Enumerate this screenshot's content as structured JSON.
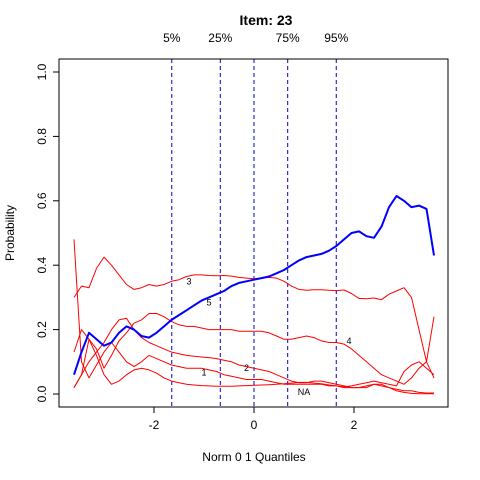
{
  "chart_data": {
    "type": "line",
    "title": "Item:  23",
    "xlabel": "Norm 0 1 Quantiles",
    "ylabel": "Probability",
    "xlim": [
      -3.6,
      3.6
    ],
    "ylim": [
      0,
      1
    ],
    "x_ticks": [
      "-2",
      "0",
      "2"
    ],
    "y_ticks": [
      "0.0",
      "0.2",
      "0.4",
      "0.6",
      "0.8",
      "1.0"
    ],
    "quantile_lines": [
      {
        "label": "5%",
        "x": -1.645
      },
      {
        "label": "25%",
        "x": -0.674
      },
      {
        "label": "",
        "x": 0
      },
      {
        "label": "75%",
        "x": 0.674
      },
      {
        "label": "95%",
        "x": 1.645
      }
    ],
    "series": [
      {
        "name": "",
        "color": "#0000ff",
        "x": [
          -3.6,
          -3.45,
          -3.3,
          -3.15,
          -3.0,
          -2.85,
          -2.7,
          -2.55,
          -2.4,
          -2.25,
          -2.1,
          -1.95,
          -1.8,
          -1.65,
          -1.5,
          -1.35,
          -1.2,
          -1.05,
          -0.9,
          -0.75,
          -0.6,
          -0.45,
          -0.3,
          -0.15,
          0.0,
          0.15,
          0.3,
          0.45,
          0.6,
          0.75,
          0.9,
          1.05,
          1.2,
          1.35,
          1.5,
          1.65,
          1.8,
          1.95,
          2.1,
          2.25,
          2.4,
          2.55,
          2.7,
          2.85,
          3.0,
          3.15,
          3.3,
          3.45,
          3.6
        ],
        "values": [
          0.06,
          0.13,
          0.19,
          0.17,
          0.15,
          0.16,
          0.19,
          0.21,
          0.2,
          0.18,
          0.175,
          0.19,
          0.21,
          0.23,
          0.245,
          0.26,
          0.275,
          0.29,
          0.3,
          0.31,
          0.32,
          0.335,
          0.345,
          0.35,
          0.355,
          0.36,
          0.365,
          0.375,
          0.385,
          0.4,
          0.415,
          0.425,
          0.43,
          0.435,
          0.445,
          0.46,
          0.48,
          0.5,
          0.505,
          0.49,
          0.485,
          0.52,
          0.58,
          0.615,
          0.6,
          0.58,
          0.585,
          0.575,
          0.43
        ]
      },
      {
        "name": "",
        "color": "#ff0000",
        "x": [
          -3.6,
          -3.45,
          -3.3,
          -3.15,
          -3.0,
          -2.85,
          -2.7,
          -2.55,
          -2.4,
          -2.25,
          -2.1,
          -1.95,
          -1.8,
          -1.65,
          -1.5,
          -1.35,
          -1.2,
          -1.05,
          -0.9,
          -0.75,
          -0.6,
          -0.45,
          -0.3,
          -0.15,
          0.0,
          0.15,
          0.3,
          0.45,
          0.6,
          0.75,
          0.9,
          1.05,
          1.2,
          1.35,
          1.5,
          1.65,
          1.8,
          1.95,
          2.1,
          2.25,
          2.4,
          2.55,
          2.7,
          2.85,
          3.0,
          3.15,
          3.3,
          3.45,
          3.6
        ],
        "values": [
          0.48,
          0.1,
          0.05,
          0.09,
          0.13,
          0.16,
          0.13,
          0.1,
          0.085,
          0.1,
          0.12,
          0.11,
          0.1,
          0.09,
          0.085,
          0.08,
          0.08,
          0.08,
          0.075,
          0.07,
          0.06,
          0.055,
          0.05,
          0.045,
          0.045,
          0.045,
          0.04,
          0.035,
          0.03,
          0.03,
          0.03,
          0.03,
          0.03,
          0.03,
          0.025,
          0.025,
          0.02,
          0.02,
          0.02,
          0.02,
          0.03,
          0.03,
          0.02,
          0.015,
          0.01,
          0.01,
          0.005,
          0.003,
          0.003
        ]
      },
      {
        "name": "",
        "color": "#ff0000",
        "x": [
          -3.6,
          -3.45,
          -3.3,
          -3.15,
          -3.0,
          -2.85,
          -2.7,
          -2.55,
          -2.4,
          -2.25,
          -2.1,
          -1.95,
          -1.8,
          -1.65,
          -1.5,
          -1.35,
          -1.2,
          -1.05,
          -0.9,
          -0.75,
          -0.6,
          -0.45,
          -0.3,
          -0.15,
          0.0,
          0.15,
          0.3,
          0.45,
          0.6,
          0.75,
          0.9,
          1.05,
          1.2,
          1.35,
          1.5,
          1.65,
          1.8,
          1.95,
          2.1,
          2.25,
          2.4,
          2.55,
          2.7,
          2.85,
          3.0,
          3.15,
          3.3,
          3.45,
          3.6
        ],
        "values": [
          0.02,
          0.06,
          0.17,
          0.12,
          0.06,
          0.03,
          0.04,
          0.06,
          0.075,
          0.08,
          0.075,
          0.065,
          0.05,
          0.04,
          0.035,
          0.03,
          0.028,
          0.026,
          0.025,
          0.024,
          0.024,
          0.024,
          0.025,
          0.026,
          0.027,
          0.028,
          0.029,
          0.03,
          0.032,
          0.034,
          0.036,
          0.036,
          0.034,
          0.032,
          0.028,
          0.025,
          0.022,
          0.025,
          0.03,
          0.035,
          0.04,
          0.035,
          0.03,
          0.025,
          0.07,
          0.09,
          0.1,
          0.08,
          0.06
        ]
      },
      {
        "name": "",
        "color": "#ff0000",
        "x": [
          -3.6,
          -3.45,
          -3.3,
          -3.15,
          -3.0,
          -2.85,
          -2.7,
          -2.55,
          -2.4,
          -2.25,
          -2.1,
          -1.95,
          -1.8,
          -1.65,
          -1.5,
          -1.35,
          -1.2,
          -1.05,
          -0.9,
          -0.75,
          -0.6,
          -0.45,
          -0.3,
          -0.15,
          0.0,
          0.15,
          0.3,
          0.45,
          0.6,
          0.75,
          0.9,
          1.05,
          1.2,
          1.35,
          1.5,
          1.65,
          1.8,
          1.95,
          2.1,
          2.25,
          2.4,
          2.55,
          2.7,
          2.85,
          3.0,
          3.15,
          3.3,
          3.45,
          3.6
        ],
        "values": [
          0.3,
          0.335,
          0.33,
          0.39,
          0.425,
          0.4,
          0.37,
          0.34,
          0.325,
          0.33,
          0.34,
          0.335,
          0.34,
          0.35,
          0.355,
          0.365,
          0.37,
          0.37,
          0.368,
          0.367,
          0.368,
          0.366,
          0.362,
          0.36,
          0.358,
          0.36,
          0.362,
          0.36,
          0.35,
          0.335,
          0.325,
          0.322,
          0.324,
          0.324,
          0.322,
          0.321,
          0.323,
          0.312,
          0.297,
          0.296,
          0.298,
          0.293,
          0.31,
          0.32,
          0.33,
          0.3,
          0.2,
          0.1,
          0.05
        ]
      },
      {
        "name": "",
        "color": "#ff0000",
        "x": [
          -3.6,
          -3.45,
          -3.3,
          -3.15,
          -3.0,
          -2.85,
          -2.7,
          -2.55,
          -2.4,
          -2.25,
          -2.1,
          -1.95,
          -1.8,
          -1.65,
          -1.5,
          -1.35,
          -1.2,
          -1.05,
          -0.9,
          -0.75,
          -0.6,
          -0.45,
          -0.3,
          -0.15,
          0.0,
          0.15,
          0.3,
          0.45,
          0.6,
          0.75,
          0.9,
          1.05,
          1.2,
          1.35,
          1.5,
          1.65,
          1.8,
          1.95,
          2.1,
          2.25,
          2.4,
          2.55,
          2.7,
          2.85,
          3.0,
          3.15,
          3.3,
          3.45,
          3.6
        ],
        "values": [
          0.13,
          0.2,
          0.17,
          0.14,
          0.08,
          0.12,
          0.165,
          0.19,
          0.22,
          0.23,
          0.25,
          0.25,
          0.24,
          0.225,
          0.215,
          0.21,
          0.21,
          0.205,
          0.2,
          0.2,
          0.2,
          0.2,
          0.195,
          0.195,
          0.195,
          0.195,
          0.19,
          0.18,
          0.17,
          0.17,
          0.175,
          0.18,
          0.175,
          0.165,
          0.16,
          0.16,
          0.155,
          0.14,
          0.12,
          0.1,
          0.08,
          0.06,
          0.05,
          0.04,
          0.03,
          0.05,
          0.08,
          0.1,
          0.24
        ]
      },
      {
        "name": "",
        "color": "#ff0000",
        "x": [
          -3.6,
          -3.45,
          -3.3,
          -3.15,
          -3.0,
          -2.85,
          -2.7,
          -2.55,
          -2.4,
          -2.25,
          -2.1,
          -1.95,
          -1.8,
          -1.65,
          -1.5,
          -1.35,
          -1.2,
          -1.05,
          -0.9,
          -0.75,
          -0.6,
          -0.45,
          -0.3,
          -0.15,
          0.0,
          0.15,
          0.3,
          0.45,
          0.6,
          0.75,
          0.9,
          1.05,
          1.2,
          1.35,
          1.5,
          1.65,
          1.8,
          1.95,
          2.1,
          2.25,
          2.4,
          2.55,
          2.7,
          2.85,
          3.0,
          3.15,
          3.3,
          3.45,
          3.6
        ],
        "values": [
          0.02,
          0.06,
          0.1,
          0.13,
          0.16,
          0.2,
          0.23,
          0.235,
          0.2,
          0.175,
          0.16,
          0.15,
          0.14,
          0.13,
          0.125,
          0.12,
          0.117,
          0.115,
          0.113,
          0.11,
          0.105,
          0.1,
          0.09,
          0.085,
          0.08,
          0.075,
          0.07,
          0.06,
          0.05,
          0.04,
          0.035,
          0.035,
          0.04,
          0.04,
          0.035,
          0.03,
          0.025,
          0.02,
          0.02,
          0.025,
          0.03,
          0.025,
          0.02,
          0.01,
          0.005,
          0.002,
          0.001,
          0.001,
          0.001
        ]
      }
    ],
    "annotations": [
      {
        "text": "3",
        "x": -1.3,
        "y": 0.34
      },
      {
        "text": "5",
        "x": -0.9,
        "y": 0.275
      },
      {
        "text": "4",
        "x": 1.9,
        "y": 0.155
      },
      {
        "text": "1",
        "x": -1.0,
        "y": 0.058
      },
      {
        "text": "2",
        "x": -0.15,
        "y": 0.072
      },
      {
        "text": "NA",
        "x": 1.0,
        "y": -0.003
      }
    ]
  }
}
